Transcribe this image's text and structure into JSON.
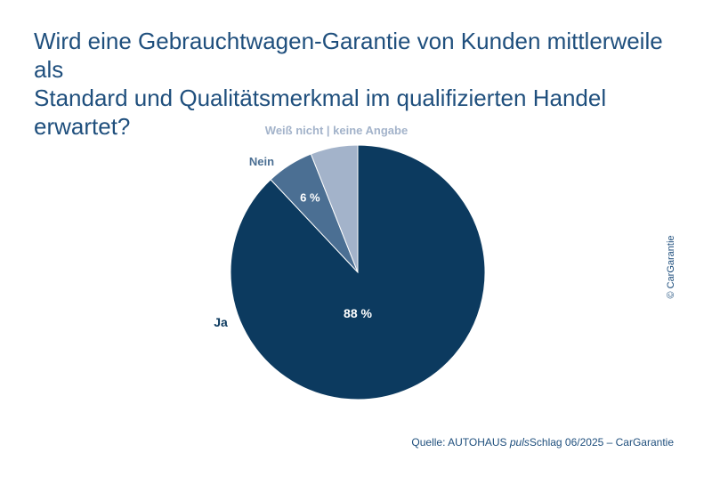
{
  "title": {
    "line1": "Wird eine Gebrauchtwagen-Garantie von Kunden mittlerweile als",
    "line2": "Standard und Qualitätsmerkmal im qualifizierten Handel erwartet?"
  },
  "chart_data": {
    "type": "pie",
    "slices": [
      {
        "label": "Ja",
        "value": 88,
        "value_label": "88 %",
        "color": "#0c3a5f"
      },
      {
        "label": "Nein",
        "value": 6,
        "value_label": "6 %",
        "color": "#4b6f93"
      },
      {
        "label": "Weiß nicht | keine Angabe",
        "value": 6,
        "value_label": "",
        "color": "#a3b3ca"
      }
    ],
    "start": "12 o'clock",
    "direction": "clockwise"
  },
  "source": {
    "prefix": "Quelle: AUTOHAUS ",
    "emphasis": "puls",
    "suffix": "Schlag 06/2025 – CarGarantie"
  },
  "copyright": "© CarGarantie",
  "colors": {
    "text": "#1f4f7d",
    "label_dark": "#0c3a5f",
    "label_mid": "#4b6f93",
    "label_light": "#a3b3ca"
  }
}
